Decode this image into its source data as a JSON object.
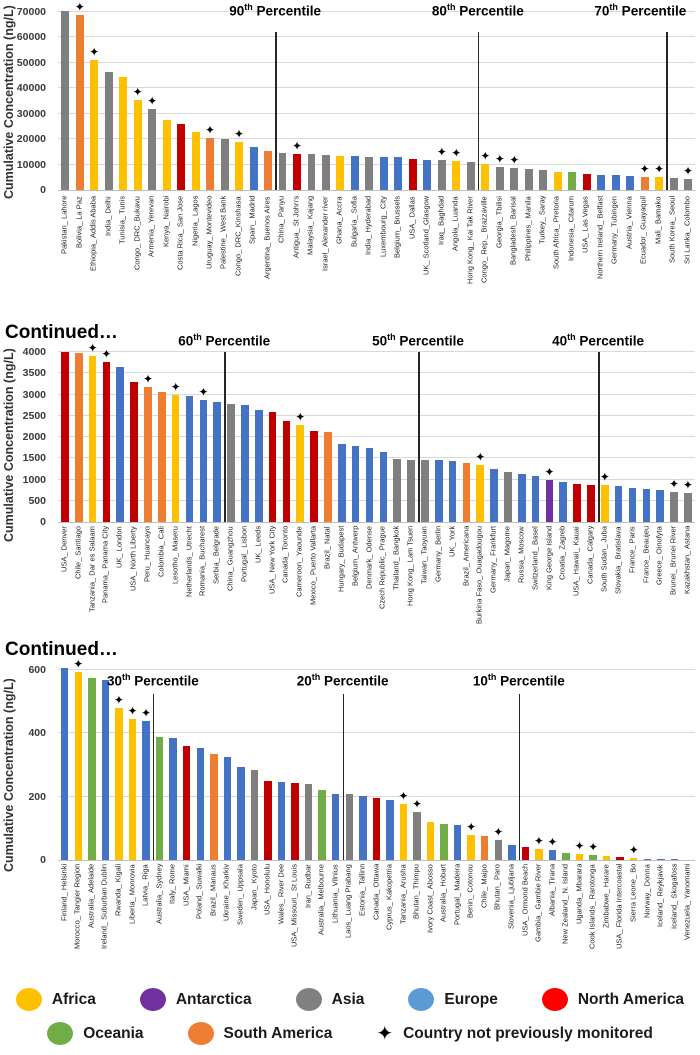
{
  "figure": {
    "continued_label": "Continued…",
    "y_axis_label": "Cumulative Concentration (ng/L)",
    "continents": [
      {
        "key": "Africa",
        "label": "Africa",
        "bar_color": "#FFC000",
        "legend_color": "#FFC000"
      },
      {
        "key": "Antarctica",
        "label": "Antarctica",
        "bar_color": "#7030A0",
        "legend_color": "#7030A0"
      },
      {
        "key": "Asia",
        "label": "Asia",
        "bar_color": "#7F7F7F",
        "legend_color": "#808080"
      },
      {
        "key": "Europe",
        "label": "Europe",
        "bar_color": "#4472C4",
        "legend_color": "#5B9BD5"
      },
      {
        "key": "North America",
        "label": "North America",
        "bar_color": "#C00000",
        "legend_color": "#FF0000"
      },
      {
        "key": "Oceania",
        "label": "Oceania",
        "bar_color": "#70AD47",
        "legend_color": "#70AD47"
      },
      {
        "key": "South America",
        "label": "South America",
        "bar_color": "#ED7D31",
        "legend_color": "#ED7D31"
      }
    ],
    "legend": {
      "star_symbol": "✦",
      "star_label": "Country not previously monitored"
    }
  },
  "chart_data": [
    {
      "type": "bar",
      "title": "",
      "ylabel": "Cumulative Concentration (ng/L)",
      "ylim": [
        0,
        70000
      ],
      "yticks": [
        70000,
        60000,
        50000,
        40000,
        30000,
        20000,
        10000,
        0
      ],
      "grid": true,
      "percentiles": [
        {
          "num": "90",
          "sup": "th",
          "word": "Percentile",
          "after": 15,
          "align": "center"
        },
        {
          "num": "80",
          "sup": "th",
          "word": "Percentile",
          "after": 29,
          "align": "center"
        },
        {
          "num": "70",
          "sup": "th",
          "word": "Percentile",
          "after": 42,
          "align": "end"
        }
      ],
      "categories": [
        "Pakistan_ Lahore",
        "Bolivia_ La Paz",
        "Ethiopia_ Addis Ababa",
        "India_ Delhi",
        "Tunisia_ Tunis",
        "Congo_ DRC_Bukavu",
        "Armenia_ Yerevan",
        "Kenya_ Nairobi",
        "Costa Rica_ San Jose",
        "Nigeria_ Lagos",
        "Uruguay_ Montevideo",
        "Palestine_ West Bank",
        "Congo_ DRC_Kinshasa",
        "Spain_ Madrid",
        "Argentina_ Buenos Aires",
        "China_ Panyu",
        "Antigua_ St John's",
        "Malaysia_ Kajang",
        "Israel_ Alexander river",
        "Ghana_ Accra",
        "Bulgaria_ Sofia",
        "India_ Hyderabad",
        "Luxembourg_ City",
        "Belgium_ Brussels",
        "USA_ Dallas",
        "UK_ Scotland_Glasgow",
        "Iraq_ Baghdad",
        "Angola_ Luanda",
        "Hong Kong_ Kai Tak River",
        "Congo_ Rep._ Brazzaville",
        "Georgia_ Tbilisi",
        "Bangladesh_ Barisal",
        "Philippines_ Manila",
        "Turkey_ Saray",
        "South Africa_ Pretoria",
        "Indonesia_ Citarum",
        "USA_ Las Vegas",
        "Northern Ireland_ Belfast",
        "Germany_ Tubingen",
        "Austria_ Vienna",
        "Ecuador_ Guayaquil",
        "Mali_ Bamako",
        "South Korea_ Seoul",
        "Sri Lanka_ Colombo"
      ],
      "values": [
        70500,
        68800,
        51000,
        46500,
        44300,
        35500,
        32000,
        27500,
        25800,
        23000,
        20600,
        20000,
        18700,
        17000,
        15500,
        14400,
        14300,
        14000,
        13800,
        13500,
        13300,
        13100,
        12900,
        12800,
        12100,
        11900,
        11700,
        11400,
        11000,
        10200,
        9200,
        8800,
        8300,
        7800,
        7200,
        7000,
        6300,
        6100,
        5800,
        5600,
        5300,
        5000,
        4800,
        4500
      ],
      "continents": [
        "Asia",
        "South America",
        "Africa",
        "Asia",
        "Africa",
        "Africa",
        "Asia",
        "Africa",
        "North America",
        "Africa",
        "South America",
        "Asia",
        "Africa",
        "Europe",
        "South America",
        "Asia",
        "North America",
        "Asia",
        "Asia",
        "Africa",
        "Europe",
        "Asia",
        "Europe",
        "Europe",
        "North America",
        "Europe",
        "Asia",
        "Africa",
        "Asia",
        "Africa",
        "Asia",
        "Asia",
        "Asia",
        "Asia",
        "Africa",
        "Oceania",
        "North America",
        "Europe",
        "Europe",
        "Europe",
        "South America",
        "Africa",
        "Asia",
        "Asia"
      ],
      "stars": [
        2,
        3,
        6,
        7,
        11,
        13,
        17,
        27,
        28,
        30,
        31,
        32,
        41,
        42,
        44
      ]
    },
    {
      "type": "bar",
      "title": "",
      "ylabel": "Cumulative Concentration (ng/L)",
      "ylim": [
        0,
        4000
      ],
      "yticks": [
        4000,
        3500,
        3000,
        2500,
        2000,
        1500,
        1000,
        500,
        0
      ],
      "grid": true,
      "percentiles": [
        {
          "num": "60",
          "sup": "th",
          "word": "Percentile",
          "after": 12,
          "align": "center"
        },
        {
          "num": "50",
          "sup": "th",
          "word": "Percentile",
          "after": 26,
          "align": "center"
        },
        {
          "num": "40",
          "sup": "th",
          "word": "Percentile",
          "after": 39,
          "align": "center"
        }
      ],
      "categories": [
        "USA_ Denver",
        "Chile_ Santiago",
        "Tanzania_ Dar es Salaam",
        "Panama_ Panama City",
        "UK_ London",
        "USA_ North Liberty",
        "Peru_ Huancayo",
        "Colombia_ Cali",
        "Lesotho_ Maseru",
        "Netherlands_ Utrecht",
        "Romania_ Bucharest",
        "Serbia_ Belgrade",
        "China_ Guangzhou",
        "Portugal_ Lisbon",
        "UK_ Leeds",
        "USA_ New York City",
        "Canada_ Toronto",
        "Cameroon_ Yaounde",
        "Mexico_ Puerto Vallarta",
        "Brazil_ Natal",
        "Hungary_ Budapest",
        "Belgium_ Antwerp",
        "Denmark_ Odense",
        "Czech Republic_ Prague",
        "Thailand_ Bangkok",
        "Hong Kong_ Lam Tsuen",
        "Taiwan_ Taoyuan",
        "Germany_ Berlin",
        "UK_ York",
        "Brazil_ Americana",
        "Burkina Faso_ Ouagadougou",
        "Germany_ Frankfurt",
        "Japan_ Magome",
        "Russia_ Moscow",
        "Switzerland_ Basel",
        "King George Island",
        "Croatia_ Zagreb",
        "USA_ Hawaii_ Kauai",
        "Canada_ Calgary",
        "South Sudan_ Juba",
        "Slovakia_ Bratislava",
        "France_ Paris",
        "France_ Beaujeu",
        "Greece_ Oinofyta",
        "Brunei_ Brunei River",
        "Kazakhstan_ Astana"
      ],
      "values": [
        4000,
        3980,
        3900,
        3760,
        3650,
        3300,
        3170,
        3070,
        3000,
        2960,
        2880,
        2820,
        2780,
        2760,
        2630,
        2580,
        2380,
        2290,
        2130,
        2110,
        1840,
        1800,
        1750,
        1650,
        1480,
        1470,
        1460,
        1450,
        1440,
        1380,
        1350,
        1250,
        1180,
        1120,
        1080,
        1000,
        930,
        900,
        880,
        870,
        850,
        790,
        780,
        750,
        700,
        680
      ],
      "continents": [
        "North America",
        "South America",
        "Africa",
        "North America",
        "Europe",
        "North America",
        "South America",
        "South America",
        "Africa",
        "Europe",
        "Europe",
        "Europe",
        "Asia",
        "Europe",
        "Europe",
        "North America",
        "North America",
        "Africa",
        "North America",
        "South America",
        "Europe",
        "Europe",
        "Europe",
        "Europe",
        "Asia",
        "Asia",
        "Asia",
        "Europe",
        "Europe",
        "South America",
        "Africa",
        "Europe",
        "Asia",
        "Europe",
        "Europe",
        "Antarctica",
        "Europe",
        "North America",
        "North America",
        "Africa",
        "Europe",
        "Europe",
        "Europe",
        "Europe",
        "Asia",
        "Asia"
      ],
      "stars": [
        3,
        4,
        7,
        9,
        11,
        18,
        31,
        36,
        40,
        45,
        46
      ]
    },
    {
      "type": "bar",
      "title": "",
      "ylabel": "Cumulative Concentration (ng/L)",
      "ylim": [
        0,
        600
      ],
      "yticks": [
        600,
        400,
        200,
        0
      ],
      "grid": true,
      "percentiles": [
        {
          "num": "30",
          "sup": "th",
          "word": "Percentile",
          "after": 7,
          "align": "center"
        },
        {
          "num": "20",
          "sup": "th",
          "word": "Percentile",
          "after": 21,
          "align": "center"
        },
        {
          "num": "10",
          "sup": "th",
          "word": "Percentile",
          "after": 34,
          "align": "center"
        }
      ],
      "categories": [
        "Finland_ Helsinki",
        "Morocco_ Tangier Region",
        "Australia_ Adelaide",
        "Ireland_ Suburban Dublin",
        "Rwanda_ Kigali",
        "Liberia_ Monrovia",
        "Latvia_ Riga",
        "Australia_ Sydney",
        "Italy_ Rome",
        "USA_ Miami",
        "Poland_ Suwalki",
        "Brazil_ Manaus",
        "Ukraine_ Kharkiv",
        "Sweden_ Uppsala",
        "Japan_ Kyoto",
        "USA_ Honolulu",
        "Wales_ River Dee",
        "USA_ Missouri_ St Louis",
        "Iran_ Rudbar",
        "Australia_ Melbourne",
        "Lithuania_ Vilnius",
        "Laos_ Luang Prabang",
        "Estonia_ Tallinn",
        "Canada_ Ottawa",
        "Cyprus_ Kakopetria",
        "Tanzania_ Arusha",
        "Bhutan_ Thimpu",
        "Ivory Coast_ Abosso",
        "Australia_ Hobart",
        "Portugal_ Madeira",
        "Benin_ Cotonou",
        "Chile_ Maipo",
        "Bhutan_ Paro",
        "Slovenia_ Ljubljana",
        "USA_ Ormond Beach",
        "Gambia_ Gambie River",
        "Albania_ Tirana",
        "New Zealand_ N. Island",
        "Uganda_ Mbarara",
        "Cook Islands_ Rarotonga",
        "Zimbabwe_ Harare",
        "USA_ Florida Intercoastal",
        "Sierra Leone_ Bo",
        "Norway_ Donna",
        "Iceland_ Reykjavik",
        "Iceland_ Skogafoss",
        "Venezuela_ Yanomami"
      ],
      "values": [
        605,
        595,
        575,
        570,
        480,
        445,
        440,
        390,
        385,
        360,
        355,
        335,
        325,
        295,
        285,
        250,
        245,
        242,
        240,
        220,
        210,
        207,
        203,
        195,
        188,
        178,
        152,
        120,
        115,
        110,
        80,
        75,
        62,
        48,
        40,
        35,
        33,
        22,
        18,
        15,
        12,
        8,
        7,
        4,
        3,
        2,
        0
      ],
      "continents": [
        "Europe",
        "Africa",
        "Oceania",
        "Europe",
        "Africa",
        "Africa",
        "Europe",
        "Oceania",
        "Europe",
        "North America",
        "Europe",
        "South America",
        "Europe",
        "Europe",
        "Asia",
        "North America",
        "Europe",
        "North America",
        "Asia",
        "Oceania",
        "Europe",
        "Asia",
        "Europe",
        "North America",
        "Europe",
        "Africa",
        "Asia",
        "Africa",
        "Oceania",
        "Europe",
        "Africa",
        "South America",
        "Asia",
        "Europe",
        "North America",
        "Africa",
        "Europe",
        "Oceania",
        "Africa",
        "Oceania",
        "Africa",
        "North America",
        "Africa",
        "Europe",
        "Europe",
        "Europe",
        "South America"
      ],
      "stars": [
        2,
        5,
        6,
        7,
        26,
        27,
        31,
        33,
        36,
        37,
        39,
        40,
        43
      ]
    }
  ]
}
